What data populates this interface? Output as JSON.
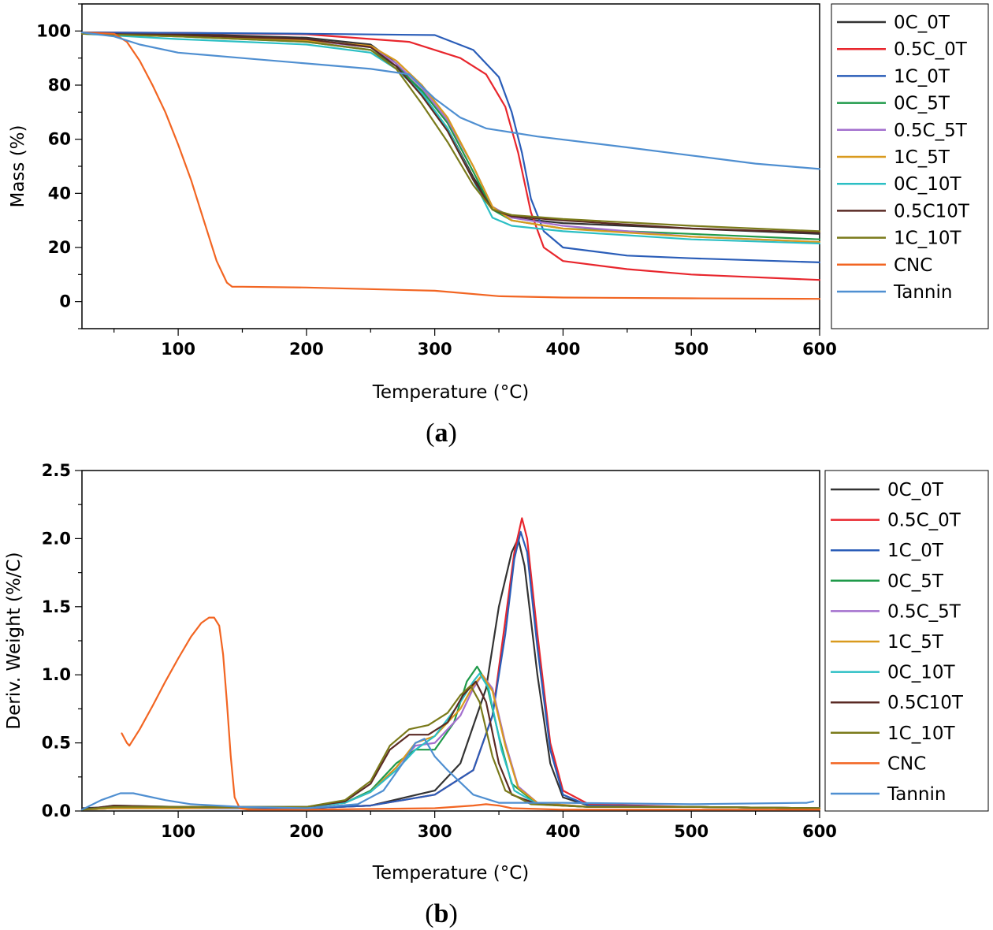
{
  "colors": {
    "0C_0T": "#333333",
    "0.5C_0T": "#e8262d",
    "1C_0T": "#2a5db8",
    "0C_5T": "#1f9a4a",
    "0.5C_5T": "#a36fce",
    "1C_5T": "#d99a1e",
    "0C_10T": "#2bbfc4",
    "0.5C10T": "#5a2a24",
    "1C_10T": "#7a7a1a",
    "CNC": "#f26522",
    "Tannin": "#4f8fd1"
  },
  "chart_data": [
    {
      "id": "a",
      "type": "line",
      "panel_label": "a",
      "xlabel": "Temperature (°C)",
      "ylabel": "Mass (%)",
      "xlim": [
        25,
        600
      ],
      "ylim": [
        -10,
        110
      ],
      "xticks": [
        100,
        200,
        300,
        400,
        500,
        600
      ],
      "yticks": [
        0,
        20,
        40,
        60,
        80,
        100
      ],
      "legend_position": "right",
      "series": [
        {
          "name": "0C_0T",
          "x": [
            25,
            100,
            200,
            250,
            270,
            290,
            310,
            330,
            345,
            360,
            400,
            500,
            600
          ],
          "y": [
            99.5,
            99,
            97.5,
            95,
            88,
            77,
            64,
            46,
            35,
            31,
            29,
            27,
            25
          ]
        },
        {
          "name": "0.5C_0T",
          "x": [
            25,
            100,
            200,
            280,
            320,
            340,
            355,
            365,
            375,
            385,
            400,
            450,
            500,
            600
          ],
          "y": [
            99.5,
            99.3,
            98.8,
            96,
            90,
            84,
            72,
            55,
            33,
            20,
            15,
            12,
            10,
            8
          ]
        },
        {
          "name": "1C_0T",
          "x": [
            25,
            100,
            200,
            300,
            330,
            350,
            360,
            368,
            375,
            385,
            400,
            450,
            500,
            600
          ],
          "y": [
            99.5,
            99.3,
            99,
            98.5,
            93,
            83,
            70,
            55,
            38,
            26,
            20,
            17,
            16,
            14.5
          ]
        },
        {
          "name": "0C_5T",
          "x": [
            25,
            100,
            200,
            250,
            270,
            290,
            310,
            330,
            345,
            360,
            400,
            500,
            600
          ],
          "y": [
            99,
            98,
            96,
            93,
            87,
            78,
            66,
            48,
            34,
            30,
            27,
            25,
            23
          ]
        },
        {
          "name": "0.5C_5T",
          "x": [
            25,
            100,
            200,
            250,
            270,
            290,
            310,
            330,
            345,
            360,
            400,
            500,
            600
          ],
          "y": [
            99,
            98,
            96.5,
            94,
            88,
            79,
            67,
            50,
            35,
            31,
            28,
            24,
            22
          ]
        },
        {
          "name": "1C_5T",
          "x": [
            25,
            100,
            200,
            250,
            270,
            290,
            310,
            330,
            345,
            360,
            400,
            500,
            600
          ],
          "y": [
            99,
            98,
            96.5,
            94.5,
            89,
            80,
            68,
            50,
            35,
            30,
            27,
            24,
            22
          ]
        },
        {
          "name": "0C_10T",
          "x": [
            25,
            100,
            200,
            250,
            270,
            290,
            310,
            330,
            345,
            360,
            400,
            500,
            600
          ],
          "y": [
            99,
            97,
            95,
            92,
            86,
            77,
            64,
            45,
            31,
            28,
            26,
            23,
            21.5
          ]
        },
        {
          "name": "0.5C10T",
          "x": [
            25,
            100,
            200,
            250,
            270,
            290,
            310,
            330,
            345,
            360,
            400,
            500,
            600
          ],
          "y": [
            99,
            98.5,
            97,
            94,
            87,
            76,
            63,
            45,
            34,
            31.5,
            30,
            27,
            25.5
          ]
        },
        {
          "name": "1C_10T",
          "x": [
            25,
            100,
            200,
            250,
            270,
            290,
            310,
            330,
            345,
            360,
            400,
            500,
            600
          ],
          "y": [
            99,
            98,
            96,
            93,
            86,
            73,
            59,
            43,
            34,
            32,
            30.5,
            28,
            26
          ]
        },
        {
          "name": "CNC",
          "x": [
            25,
            50,
            60,
            70,
            80,
            90,
            100,
            110,
            120,
            130,
            138,
            142,
            150,
            200,
            300,
            350,
            400,
            500,
            600
          ],
          "y": [
            99.5,
            99,
            96,
            89,
            80,
            70,
            58,
            45,
            30,
            15,
            7,
            5.5,
            5.5,
            5.2,
            4,
            2,
            1.5,
            1.2,
            1
          ]
        },
        {
          "name": "Tannin",
          "x": [
            25,
            50,
            70,
            100,
            150,
            200,
            250,
            280,
            300,
            320,
            340,
            380,
            450,
            500,
            550,
            600
          ],
          "y": [
            99.5,
            98,
            95,
            92,
            90,
            88,
            86,
            84,
            75,
            68,
            64,
            61,
            57,
            54,
            51,
            49
          ]
        }
      ]
    },
    {
      "id": "b",
      "type": "line",
      "panel_label": "b",
      "xlabel": "Temperature (°C)",
      "ylabel": "Deriv. Weight (%/C)",
      "xlim": [
        25,
        600
      ],
      "ylim": [
        0,
        2.5
      ],
      "xticks": [
        100,
        200,
        300,
        400,
        500,
        600
      ],
      "yticks": [
        0.0,
        0.5,
        1.0,
        1.5,
        2.0,
        2.5
      ],
      "ytick_labels": [
        "0.0",
        "0.5",
        "1.0",
        "1.5",
        "2.0",
        "2.5"
      ],
      "legend_position": "right",
      "series": [
        {
          "name": "0C_0T",
          "x": [
            25,
            50,
            100,
            200,
            250,
            300,
            320,
            340,
            350,
            360,
            365,
            370,
            380,
            390,
            400,
            420,
            500,
            600
          ],
          "y": [
            0.02,
            0.03,
            0.03,
            0.02,
            0.04,
            0.15,
            0.35,
            0.9,
            1.5,
            1.9,
            2.0,
            1.8,
            1.0,
            0.35,
            0.1,
            0.04,
            0.03,
            0.02
          ]
        },
        {
          "name": "0.5C_0T",
          "x": [
            25,
            50,
            100,
            200,
            250,
            300,
            330,
            345,
            355,
            362,
            368,
            372,
            380,
            390,
            400,
            420,
            500,
            600
          ],
          "y": [
            0.01,
            0.02,
            0.02,
            0.02,
            0.04,
            0.12,
            0.3,
            0.7,
            1.4,
            1.9,
            2.15,
            2.0,
            1.3,
            0.5,
            0.15,
            0.05,
            0.03,
            0.02
          ]
        },
        {
          "name": "1C_0T",
          "x": [
            25,
            50,
            100,
            200,
            250,
            300,
            330,
            345,
            355,
            362,
            367,
            372,
            380,
            390,
            400,
            420,
            500,
            600
          ],
          "y": [
            0.01,
            0.02,
            0.02,
            0.02,
            0.04,
            0.12,
            0.3,
            0.7,
            1.3,
            1.85,
            2.05,
            1.9,
            1.2,
            0.45,
            0.12,
            0.04,
            0.03,
            0.02
          ]
        },
        {
          "name": "0C_5T",
          "x": [
            25,
            50,
            100,
            200,
            230,
            250,
            270,
            285,
            300,
            315,
            325,
            333,
            340,
            350,
            360,
            380,
            420,
            500,
            600
          ],
          "y": [
            0.01,
            0.02,
            0.02,
            0.03,
            0.06,
            0.15,
            0.35,
            0.45,
            0.45,
            0.65,
            0.95,
            1.06,
            0.95,
            0.55,
            0.2,
            0.05,
            0.03,
            0.03,
            0.02
          ]
        },
        {
          "name": "0.5C_5T",
          "x": [
            25,
            50,
            100,
            200,
            230,
            250,
            270,
            285,
            300,
            320,
            330,
            337,
            345,
            355,
            365,
            380,
            420,
            500,
            600
          ],
          "y": [
            0.01,
            0.02,
            0.02,
            0.03,
            0.06,
            0.14,
            0.32,
            0.48,
            0.5,
            0.7,
            0.9,
            1.0,
            0.9,
            0.5,
            0.18,
            0.06,
            0.03,
            0.03,
            0.02
          ]
        },
        {
          "name": "1C_5T",
          "x": [
            25,
            50,
            100,
            200,
            230,
            250,
            270,
            285,
            300,
            320,
            330,
            337,
            345,
            355,
            365,
            380,
            420,
            500,
            600
          ],
          "y": [
            0.01,
            0.02,
            0.02,
            0.03,
            0.06,
            0.14,
            0.32,
            0.5,
            0.55,
            0.75,
            0.92,
            1.0,
            0.88,
            0.48,
            0.17,
            0.06,
            0.03,
            0.03,
            0.02
          ]
        },
        {
          "name": "0C_10T",
          "x": [
            25,
            50,
            100,
            200,
            230,
            250,
            270,
            285,
            300,
            320,
            330,
            335,
            342,
            352,
            362,
            380,
            420,
            500,
            600
          ],
          "y": [
            0.01,
            0.04,
            0.03,
            0.03,
            0.06,
            0.14,
            0.3,
            0.45,
            0.55,
            0.8,
            0.95,
            1.01,
            0.9,
            0.45,
            0.15,
            0.05,
            0.03,
            0.03,
            0.02
          ]
        },
        {
          "name": "0.5C10T",
          "x": [
            25,
            50,
            100,
            200,
            230,
            250,
            265,
            280,
            295,
            310,
            322,
            332,
            340,
            350,
            360,
            380,
            420,
            500,
            600
          ],
          "y": [
            0.01,
            0.04,
            0.03,
            0.03,
            0.07,
            0.2,
            0.45,
            0.56,
            0.56,
            0.65,
            0.85,
            0.95,
            0.8,
            0.35,
            0.12,
            0.05,
            0.03,
            0.03,
            0.02
          ]
        },
        {
          "name": "1C_10T",
          "x": [
            25,
            50,
            100,
            200,
            230,
            250,
            265,
            280,
            295,
            310,
            320,
            328,
            335,
            345,
            355,
            375,
            420,
            500,
            600
          ],
          "y": [
            0.01,
            0.03,
            0.03,
            0.03,
            0.08,
            0.22,
            0.48,
            0.6,
            0.63,
            0.72,
            0.85,
            0.92,
            0.8,
            0.4,
            0.15,
            0.05,
            0.03,
            0.03,
            0.02
          ]
        },
        {
          "name": "CNC",
          "x": [
            56,
            60,
            62,
            70,
            80,
            90,
            100,
            110,
            118,
            124,
            128,
            132,
            135,
            138,
            141,
            144,
            148,
            155,
            200,
            300,
            330,
            340,
            350,
            360,
            400,
            500,
            600
          ],
          "y": [
            0.57,
            0.5,
            0.48,
            0.6,
            0.77,
            0.95,
            1.12,
            1.28,
            1.38,
            1.42,
            1.42,
            1.36,
            1.15,
            0.8,
            0.4,
            0.1,
            0.02,
            0.01,
            0.01,
            0.02,
            0.04,
            0.05,
            0.04,
            0.02,
            0.01,
            0.01,
            0.01
          ]
        },
        {
          "name": "Tannin",
          "x": [
            25,
            40,
            55,
            65,
            75,
            90,
            110,
            150,
            200,
            240,
            260,
            275,
            285,
            292,
            300,
            310,
            330,
            350,
            400,
            500,
            590,
            595
          ],
          "y": [
            0.01,
            0.08,
            0.13,
            0.13,
            0.11,
            0.08,
            0.05,
            0.03,
            0.02,
            0.05,
            0.15,
            0.35,
            0.5,
            0.53,
            0.4,
            0.3,
            0.12,
            0.06,
            0.06,
            0.05,
            0.06,
            0.07
          ]
        }
      ]
    }
  ]
}
